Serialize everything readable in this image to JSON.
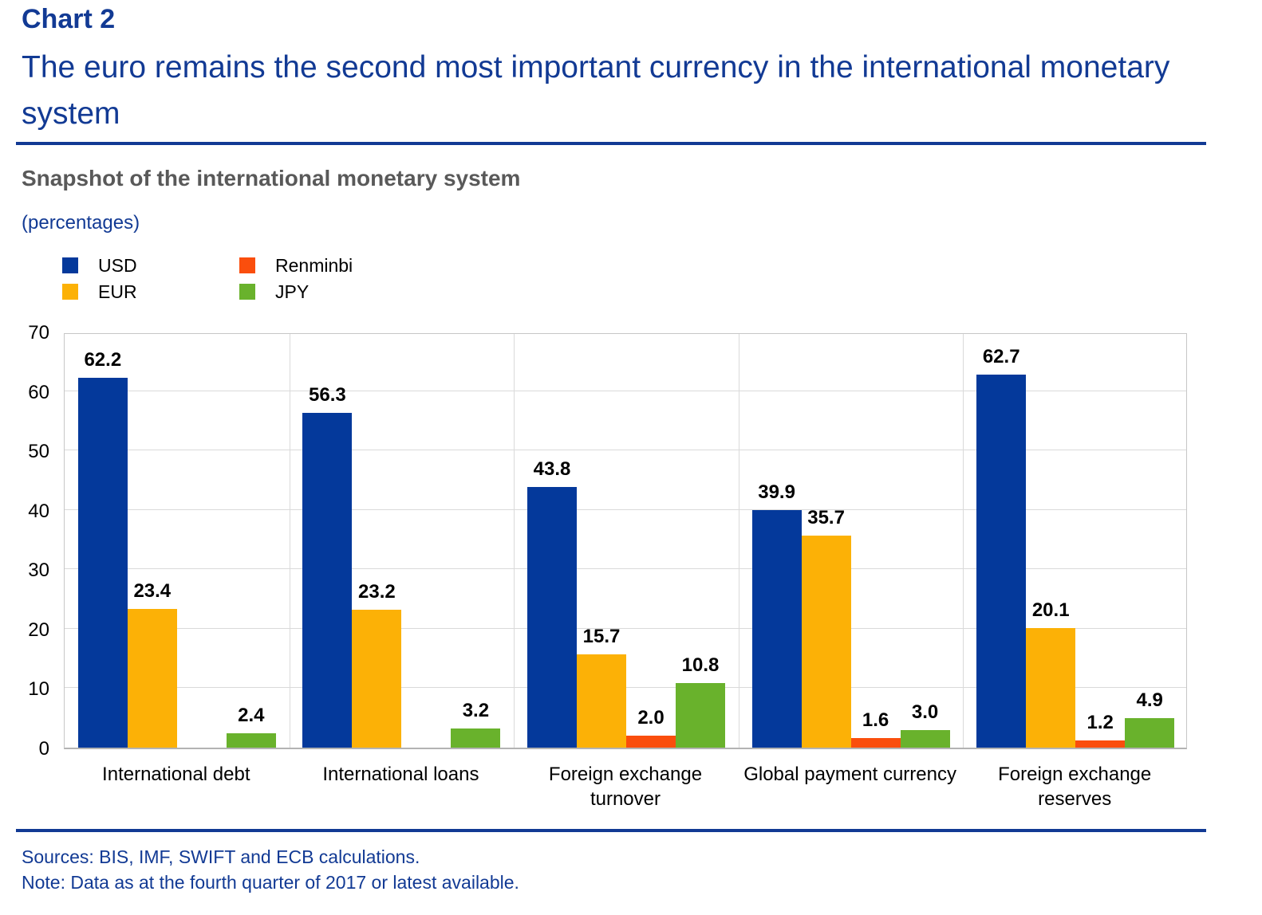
{
  "header": {
    "chart_number": "Chart 2",
    "title": "The euro remains the second most important currency in the international monetary system"
  },
  "chart": {
    "heading": "Snapshot of the international monetary system",
    "unit_note": "(percentages)"
  },
  "legend": {
    "columns": [
      {
        "items": [
          {
            "label": "USD",
            "color": "#04399B"
          },
          {
            "label": "EUR",
            "color": "#FCB106"
          }
        ]
      },
      {
        "items": [
          {
            "label": "Renminbi",
            "color": "#FA4E0D"
          },
          {
            "label": "JPY",
            "color": "#69B22C"
          }
        ]
      }
    ]
  },
  "chart_data": {
    "type": "bar",
    "title": "Snapshot of the international monetary system",
    "unit": "percentages",
    "categories": [
      "International debt",
      "International loans",
      "Foreign exchange turnover",
      "Global payment currency",
      "Foreign exchange reserves"
    ],
    "category_label_lines": [
      [
        "International debt"
      ],
      [
        "International loans"
      ],
      [
        "Foreign exchange",
        "turnover"
      ],
      [
        "Global payment currency"
      ],
      [
        "Foreign exchange",
        "reserves"
      ]
    ],
    "series": [
      {
        "name": "USD",
        "color": "#04399B",
        "values": [
          62.2,
          56.3,
          43.8,
          39.9,
          62.7
        ],
        "value_labels": [
          "62.2",
          "56.3",
          "43.8",
          "39.9",
          "62.7"
        ]
      },
      {
        "name": "EUR",
        "color": "#FCB106",
        "values": [
          23.4,
          23.2,
          15.7,
          35.7,
          20.1
        ],
        "value_labels": [
          "23.4",
          "23.2",
          "15.7",
          "35.7",
          "20.1"
        ]
      },
      {
        "name": "Renminbi",
        "color": "#FA4E0D",
        "values": [
          null,
          null,
          2.0,
          1.6,
          1.2
        ],
        "value_labels": [
          null,
          null,
          "2.0",
          "1.6",
          "1.2"
        ]
      },
      {
        "name": "JPY",
        "color": "#69B22C",
        "values": [
          2.4,
          3.2,
          10.8,
          3.0,
          4.9
        ],
        "value_labels": [
          "2.4",
          "3.2",
          "10.8",
          "3.0",
          "4.9"
        ]
      }
    ],
    "ylim": [
      0,
      70
    ],
    "yticks": [
      0,
      10,
      20,
      30,
      40,
      50,
      60,
      70
    ],
    "xlabel": "",
    "ylabel": "",
    "grid": "horizontal gridlines every 10, vertical separators between category groups",
    "legend_position": "top-left above plot"
  },
  "footer": {
    "sources": "Sources: BIS, IMF, SWIFT and ECB calculations.",
    "note": "Note: Data as at the fourth quarter of 2017 or latest available."
  },
  "colors": {
    "text_blue": "#123A94",
    "heading_gray": "#595959",
    "value_label": "#000000",
    "gridline": "#DADADA",
    "plot_border": "#C7C7C7"
  }
}
